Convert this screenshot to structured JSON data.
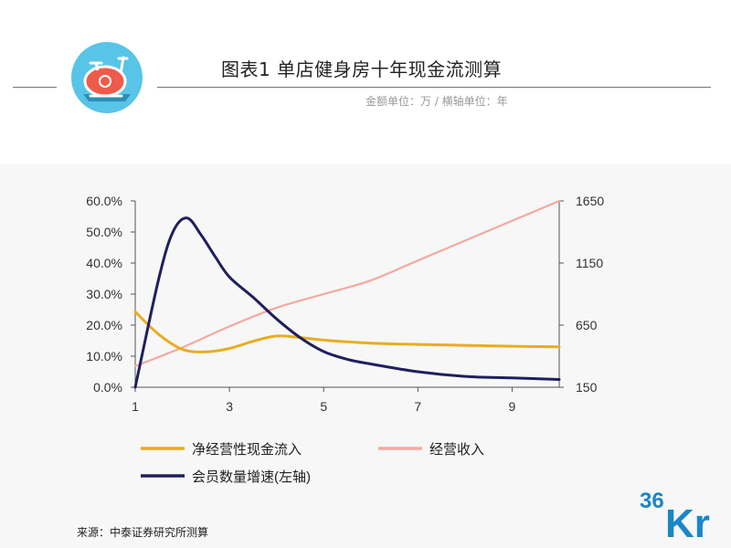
{
  "header": {
    "title": "图表1  单店健身房十年现金流测算",
    "subtitle": "金额单位：万  /  横轴单位：年"
  },
  "icon": "exercise-bike-icon",
  "brand": {
    "logo_text_number": "36",
    "logo_text_letters": "Kr"
  },
  "footer": {
    "source": "来源：中泰证券研究所测算"
  },
  "chart_data": {
    "type": "line",
    "title": "图表1  单店健身房十年现金流测算",
    "subtitle": "金额单位：万  /  横轴单位：年",
    "xlabel": "",
    "ylabel": "",
    "x": [
      1,
      2,
      3,
      4,
      5,
      6,
      7,
      8,
      9,
      10
    ],
    "xlim": [
      1,
      10
    ],
    "x_ticks": [
      "1",
      "3",
      "5",
      "7",
      "9"
    ],
    "left_axis": {
      "ylim": [
        0,
        0.6
      ],
      "ticks": [
        "0.0%",
        "10.0%",
        "20.0%",
        "30.0%",
        "40.0%",
        "50.0%",
        "60.0%"
      ]
    },
    "right_axis": {
      "ylim": [
        150,
        1650
      ],
      "ticks": [
        "150",
        "650",
        "1150",
        "1650"
      ]
    },
    "series": [
      {
        "name": "净经营性现金流入",
        "axis": "left",
        "color": "#e8ad1f",
        "x": [
          1,
          1.5,
          2,
          2.5,
          3,
          3.5,
          4,
          4.5,
          5,
          6,
          7,
          8,
          9,
          10
        ],
        "values": [
          0.243,
          0.17,
          0.122,
          0.114,
          0.125,
          0.148,
          0.165,
          0.16,
          0.152,
          0.142,
          0.138,
          0.135,
          0.132,
          0.13
        ]
      },
      {
        "name": "经营收入",
        "axis": "right",
        "color": "#f4a9a0",
        "x": [
          1,
          2,
          3,
          4,
          5,
          6,
          7,
          8,
          9,
          10
        ],
        "values": [
          320,
          470,
          640,
          790,
          900,
          1010,
          1170,
          1330,
          1490,
          1650
        ]
      },
      {
        "name": "会员数量增速(左轴)",
        "axis": "left",
        "color": "#1f1f5e",
        "x": [
          1,
          1.5,
          1.8,
          2.1,
          2.4,
          2.7,
          3,
          3.5,
          4,
          4.5,
          5,
          5.5,
          6,
          7,
          8,
          9,
          10
        ],
        "values": [
          0.0,
          0.35,
          0.5,
          0.545,
          0.49,
          0.42,
          0.355,
          0.29,
          0.22,
          0.16,
          0.115,
          0.09,
          0.075,
          0.05,
          0.035,
          0.03,
          0.025
        ]
      }
    ],
    "legend": {
      "placement": "bottom",
      "entries": [
        "净经营性现金流入",
        "经营收入",
        "会员数量增速(左轴)"
      ]
    },
    "grid": false
  }
}
